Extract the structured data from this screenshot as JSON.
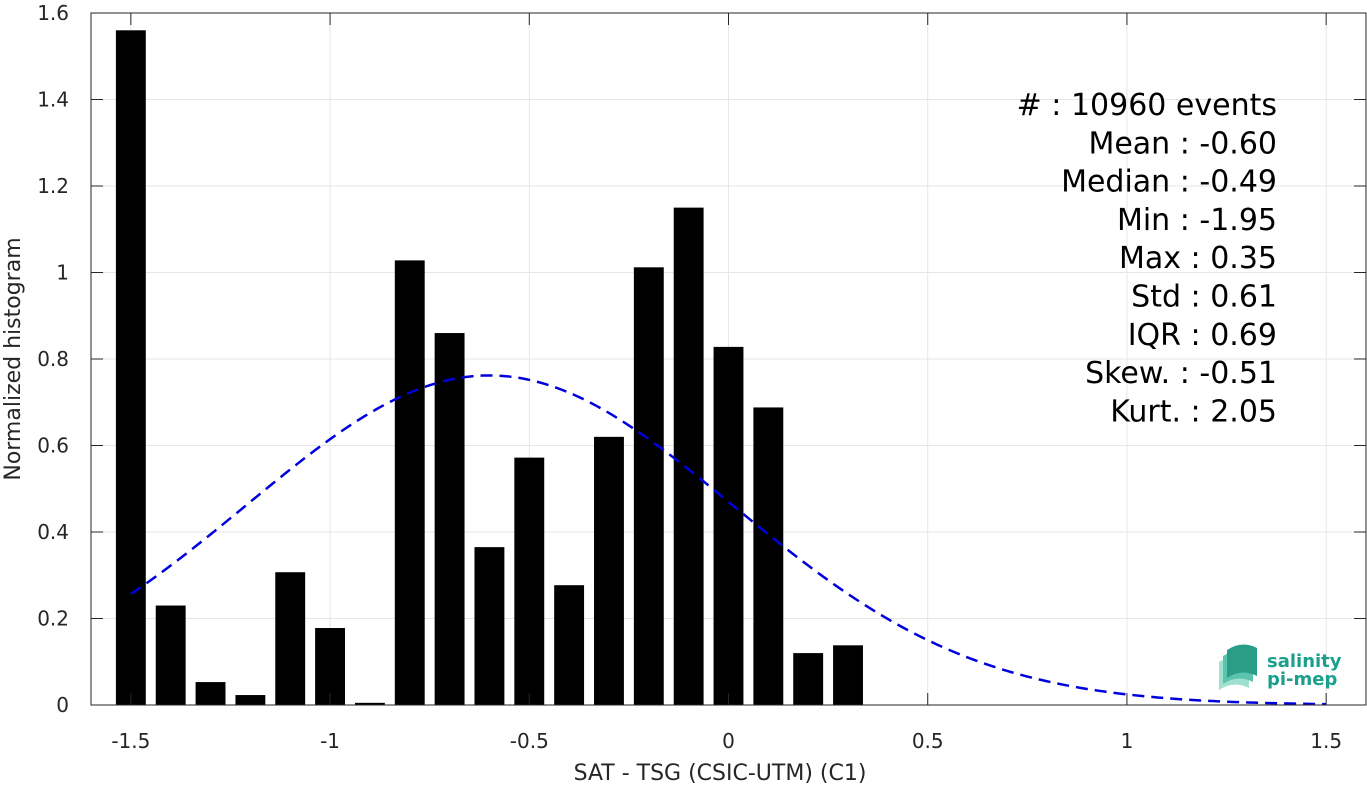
{
  "chart_data": {
    "type": "bar",
    "xlabel": "SAT - TSG (CSIC-UTM) (C1)",
    "ylabel": "Normalized histogram",
    "xlim": [
      -1.6,
      1.6
    ],
    "ylim": [
      0,
      1.6
    ],
    "xticks": [
      -1.5,
      -1,
      -0.5,
      0,
      0.5,
      1,
      1.5
    ],
    "xtick_labels": [
      "-1.5",
      "-1",
      "-0.5",
      "0",
      "0.5",
      "1",
      "1.5"
    ],
    "yticks": [
      0,
      0.2,
      0.4,
      0.6,
      0.8,
      1,
      1.2,
      1.4,
      1.6
    ],
    "ytick_labels": [
      "0",
      "0.2",
      "0.4",
      "0.6",
      "0.8",
      "1",
      "1.2",
      "1.4",
      "1.6"
    ],
    "grid": true,
    "bar_color": "#000000",
    "bar_width": 0.075,
    "bins": [
      -1.5,
      -1.4,
      -1.3,
      -1.2,
      -1.1,
      -1.0,
      -0.9,
      -0.8,
      -0.7,
      -0.6,
      -0.5,
      -0.4,
      -0.3,
      -0.2,
      -0.1,
      0.0,
      0.1,
      0.2,
      0.3
    ],
    "values": [
      1.56,
      0.23,
      0.053,
      0.023,
      0.307,
      0.178,
      0.005,
      1.028,
      0.86,
      0.365,
      0.572,
      0.277,
      0.62,
      1.012,
      1.15,
      0.828,
      0.688,
      0.12,
      0.138
    ],
    "fit": {
      "type": "gaussian",
      "color": "#0000dd",
      "style": "dashed",
      "mean": -0.6,
      "std": 0.61,
      "peak": 0.762,
      "x_range": [
        -1.5,
        1.5
      ]
    },
    "stats": [
      {
        "label": "#  : 10960 events"
      },
      {
        "label": "Mean : -0.60"
      },
      {
        "label": "Median : -0.49"
      },
      {
        "label": "Min : -1.95"
      },
      {
        "label": "Max : 0.35"
      },
      {
        "label": "Std : 0.61"
      },
      {
        "label": "IQR : 0.69"
      },
      {
        "label": "Skew. : -0.51"
      },
      {
        "label": "Kurt. : 2.05"
      }
    ]
  },
  "logo": {
    "line1": "salinity",
    "line2": "pi-mep",
    "color": "#1aa08c"
  }
}
